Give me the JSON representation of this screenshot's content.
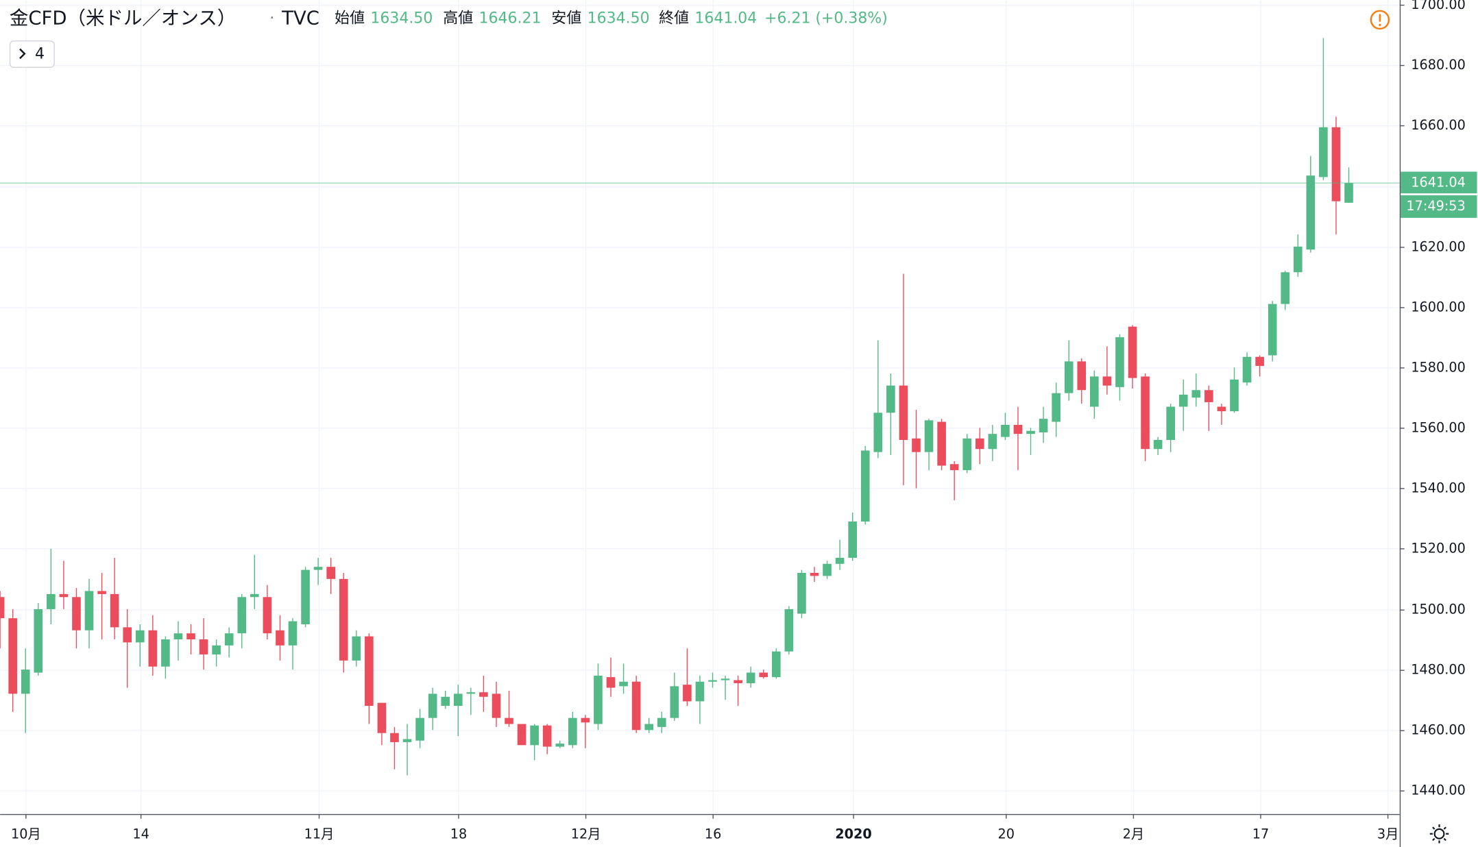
{
  "header": {
    "title": "金CFD（米ドル／オンス）",
    "separator": "·",
    "exchange": "TVC",
    "open_label": "始値",
    "open": "1634.50",
    "high_label": "高値",
    "high": "1646.21",
    "low_label": "安値",
    "low": "1634.50",
    "close_label": "終値",
    "close": "1641.04",
    "change": "+6.21",
    "change_pct": "(+0.38%)",
    "indicator_count": "4"
  },
  "chart_data": {
    "type": "candlestick",
    "up_color": "#53b987",
    "down_color": "#eb4d5c",
    "grid": true,
    "open": [
      1504,
      1497,
      1472,
      1479,
      1500,
      1505,
      1504,
      1493,
      1506,
      1505,
      1494,
      1489,
      1493,
      1481,
      1490,
      1492,
      1490,
      1485,
      1488,
      1492,
      1504,
      1504,
      1493,
      1488,
      1495,
      1513,
      1514,
      1510,
      1483,
      1491,
      1469,
      1459,
      1456,
      1456.5,
      1464,
      1468,
      1468,
      1472,
      1472.5,
      1472,
      1464,
      1462,
      1455,
      1461.5,
      1454.5,
      1455,
      1464,
      1462,
      1477.5,
      1474.5,
      1476,
      1460,
      1461,
      1464,
      1475,
      1469.5,
      1476,
      1476.5,
      1476.5,
      1475.5,
      1479,
      1477.5,
      1486,
      1498.5,
      1512,
      1511,
      1515,
      1517,
      1529,
      1552,
      1565,
      1574,
      1556.5,
      1552,
      1562,
      1548,
      1546,
      1556.5,
      1553,
      1557,
      1561,
      1558,
      1558.5,
      1562,
      1571.5,
      1582,
      1567,
      1577,
      1573.5,
      1593.5,
      1577,
      1553,
      1556,
      1567,
      1570,
      1572.5,
      1567,
      1565.5,
      1575,
      1583.5,
      1584,
      1601,
      1611.5,
      1619,
      1643,
      1659.5,
      1634.5
    ],
    "high": [
      1506,
      1500,
      1487,
      1502,
      1520,
      1516,
      1507,
      1510,
      1512,
      1517,
      1500,
      1495,
      1498,
      1491,
      1496,
      1495,
      1497,
      1490,
      1494,
      1505,
      1518,
      1508,
      1498,
      1497,
      1514,
      1517,
      1517,
      1512,
      1493,
      1492,
      1469,
      1461,
      1462,
      1467,
      1474,
      1473,
      1475,
      1474,
      1478,
      1476,
      1473,
      1462,
      1462,
      1462,
      1456.5,
      1466,
      1465,
      1482,
      1484,
      1482,
      1478,
      1464,
      1466,
      1479,
      1487,
      1478,
      1479,
      1478,
      1478,
      1481,
      1480,
      1487,
      1501,
      1513,
      1514,
      1516,
      1523,
      1532,
      1554,
      1589,
      1578,
      1611,
      1566,
      1563,
      1563,
      1549,
      1558,
      1560,
      1561,
      1565,
      1567,
      1560,
      1567,
      1575,
      1589,
      1583,
      1579,
      1587,
      1591,
      1594,
      1578,
      1557,
      1568,
      1576,
      1578,
      1574,
      1568,
      1580,
      1585,
      1584,
      1602,
      1612,
      1624,
      1650,
      1689,
      1663,
      1646.21
    ],
    "low": [
      1487,
      1466,
      1459,
      1478,
      1495,
      1500,
      1487,
      1487,
      1490,
      1490,
      1474,
      1481,
      1478,
      1477,
      1483,
      1485,
      1480,
      1481,
      1484,
      1487,
      1500,
      1490,
      1483,
      1480,
      1494,
      1508,
      1505,
      1479,
      1481,
      1462,
      1455,
      1447,
      1445,
      1454,
      1460,
      1467,
      1458,
      1465,
      1466,
      1461,
      1461,
      1455,
      1450,
      1452,
      1454,
      1454,
      1454,
      1460,
      1471,
      1472,
      1459,
      1459,
      1459,
      1463,
      1468,
      1462,
      1474,
      1470,
      1468,
      1474,
      1477,
      1477,
      1485,
      1497,
      1509,
      1510,
      1513,
      1516,
      1528,
      1550,
      1551,
      1541,
      1540,
      1546,
      1546,
      1536,
      1545,
      1548,
      1549,
      1556,
      1546,
      1551,
      1555,
      1557,
      1569,
      1568,
      1563,
      1571,
      1569,
      1573,
      1549,
      1551,
      1552,
      1559,
      1567,
      1559,
      1561,
      1565,
      1574,
      1577,
      1582,
      1599,
      1610,
      1618,
      1642,
      1624,
      1634.5
    ],
    "close": [
      1497,
      1472,
      1480,
      1500,
      1505,
      1504,
      1493,
      1506,
      1505,
      1494,
      1489,
      1493,
      1481,
      1490,
      1492,
      1490,
      1485,
      1488,
      1492,
      1504,
      1505,
      1492,
      1488,
      1496,
      1513,
      1514,
      1510,
      1483,
      1491,
      1468,
      1459,
      1456,
      1457,
      1464,
      1472,
      1471,
      1472,
      1472.5,
      1471,
      1464,
      1462,
      1455,
      1461.5,
      1454.5,
      1455.5,
      1464,
      1462.5,
      1478,
      1474,
      1476,
      1460,
      1462,
      1464,
      1474.5,
      1469.5,
      1476,
      1476.5,
      1477,
      1475.5,
      1479,
      1477.5,
      1486,
      1500,
      1512,
      1511,
      1515,
      1517,
      1529,
      1552.5,
      1565,
      1574,
      1556,
      1552,
      1562.5,
      1547.5,
      1546,
      1556.5,
      1553,
      1558,
      1561,
      1558,
      1559,
      1563,
      1571.5,
      1582,
      1572.5,
      1577,
      1574,
      1590,
      1576.5,
      1553,
      1556,
      1567,
      1571,
      1572.5,
      1568.5,
      1565.5,
      1576,
      1583.5,
      1580.5,
      1601,
      1611.5,
      1620,
      1643.5,
      1659.5,
      1635,
      1641.04
    ],
    "xlim": [
      0,
      110
    ],
    "xticks": [
      {
        "value": 2,
        "label": "10月"
      },
      {
        "value": 11,
        "label": "14"
      },
      {
        "value": 25,
        "label": "11月"
      },
      {
        "value": 36,
        "label": "18"
      },
      {
        "value": 46,
        "label": "12月"
      },
      {
        "value": 56,
        "label": "16"
      },
      {
        "value": 67,
        "label": "2020"
      },
      {
        "value": 79,
        "label": "20"
      },
      {
        "value": 89,
        "label": "2月"
      },
      {
        "value": 99,
        "label": "17"
      },
      {
        "value": 109,
        "label": "3月"
      }
    ],
    "ylim": [
      1432.2,
      1701.6
    ],
    "yticks": [
      {
        "value": 1440,
        "label": "1440.00"
      },
      {
        "value": 1460,
        "label": "1460.00"
      },
      {
        "value": 1480,
        "label": "1480.00"
      },
      {
        "value": 1500,
        "label": "1500.00"
      },
      {
        "value": 1520,
        "label": "1520.00"
      },
      {
        "value": 1540,
        "label": "1540.00"
      },
      {
        "value": 1560,
        "label": "1560.00"
      },
      {
        "value": 1580,
        "label": "1580.00"
      },
      {
        "value": 1600,
        "label": "1600.00"
      },
      {
        "value": 1620,
        "label": "1620.00"
      },
      {
        "value": 1640,
        "label": "1640.00"
      },
      {
        "value": 1660,
        "label": "1660.00"
      },
      {
        "value": 1680,
        "label": "1680.00"
      },
      {
        "value": 1700,
        "label": "1700.00"
      }
    ],
    "last_price": 1641.04,
    "countdown": "17:49:53"
  }
}
